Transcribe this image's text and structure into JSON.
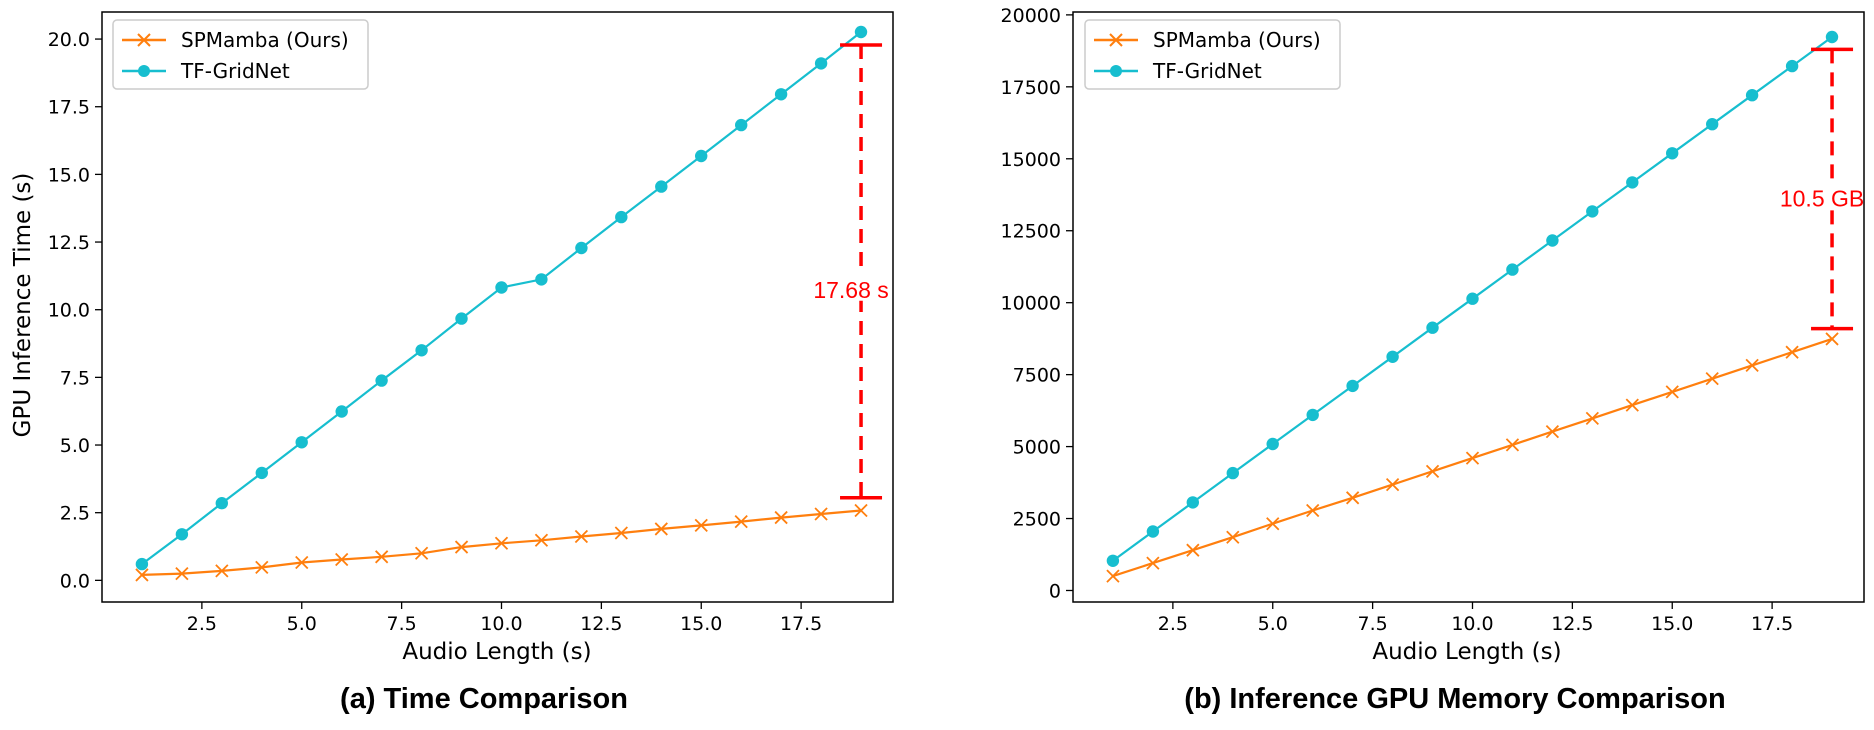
{
  "colors": {
    "spmamba": "#ff7f0e",
    "tfgridnet": "#17becf",
    "annotation": "#ff0000"
  },
  "chart_data": [
    {
      "type": "line",
      "caption": "(a) Time Comparison",
      "xlabel": "Audio Length (s)",
      "ylabel": "GPU Inference Time (s)",
      "xlim": [
        0.0,
        19.8
      ],
      "ylim": [
        -0.8,
        21.0
      ],
      "xticks": [
        2.5,
        5.0,
        7.5,
        10.0,
        12.5,
        15.0,
        17.5
      ],
      "xtick_labels": [
        "2.5",
        "5.0",
        "7.5",
        "10.0",
        "12.5",
        "15.0",
        "17.5"
      ],
      "yticks": [
        0.0,
        2.5,
        5.0,
        7.5,
        10.0,
        12.5,
        15.0,
        17.5,
        20.0
      ],
      "ytick_labels": [
        "0.0",
        "2.5",
        "5.0",
        "7.5",
        "10.0",
        "12.5",
        "15.0",
        "17.5",
        "20.0"
      ],
      "legend": "top-left",
      "grid": false,
      "x": [
        1,
        2,
        3,
        4,
        5,
        6,
        7,
        8,
        9,
        10,
        11,
        12,
        13,
        14,
        15,
        16,
        17,
        18,
        19
      ],
      "series": [
        {
          "name": "SPMamba (Ours)",
          "marker": "x",
          "color": "#ff7f0e",
          "values": [
            0.2,
            0.25,
            0.35,
            0.48,
            0.66,
            0.77,
            0.87,
            1.0,
            1.23,
            1.37,
            1.48,
            1.62,
            1.75,
            1.9,
            2.03,
            2.17,
            2.32,
            2.45,
            2.58
          ]
        },
        {
          "name": "TF-GridNet",
          "marker": "o",
          "color": "#17becf",
          "values": [
            0.6,
            1.7,
            2.85,
            3.97,
            5.1,
            6.24,
            7.38,
            8.5,
            9.67,
            10.82,
            11.12,
            12.28,
            13.42,
            14.55,
            15.68,
            16.82,
            17.96,
            19.1,
            20.26
          ]
        }
      ],
      "annotation": {
        "text": "17.68 s",
        "x": 19.0,
        "y_low": 3.05,
        "y_high": 19.78,
        "label_y": 10.7
      }
    },
    {
      "type": "line",
      "caption": "(b) Inference GPU Memory Comparison",
      "xlabel": "Audio Length (s)",
      "ylabel": "",
      "xlim": [
        0.0,
        19.8
      ],
      "ylim": [
        -400,
        20100
      ],
      "xticks": [
        2.5,
        5.0,
        7.5,
        10.0,
        12.5,
        15.0,
        17.5
      ],
      "xtick_labels": [
        "2.5",
        "5.0",
        "7.5",
        "10.0",
        "12.5",
        "15.0",
        "17.5"
      ],
      "yticks": [
        0,
        2500,
        5000,
        7500,
        10000,
        12500,
        15000,
        17500,
        20000
      ],
      "ytick_labels": [
        "0",
        "2500",
        "5000",
        "7500",
        "10000",
        "12500",
        "15000",
        "17500",
        "20000"
      ],
      "legend": "top-left",
      "grid": false,
      "x": [
        1,
        2,
        3,
        4,
        5,
        6,
        7,
        8,
        9,
        10,
        11,
        12,
        13,
        14,
        15,
        16,
        17,
        18,
        19
      ],
      "series": [
        {
          "name": "SPMamba (Ours)",
          "marker": "x",
          "color": "#ff7f0e",
          "values": [
            500,
            950,
            1400,
            1850,
            2320,
            2780,
            3220,
            3680,
            4140,
            4600,
            5060,
            5520,
            5980,
            6440,
            6900,
            7360,
            7820,
            8280,
            8740
          ]
        },
        {
          "name": "TF-GridNet",
          "marker": "o",
          "color": "#17becf",
          "values": [
            1030,
            2050,
            3060,
            4080,
            5090,
            6100,
            7110,
            8120,
            9130,
            10140,
            11150,
            12160,
            13170,
            14180,
            15190,
            16200,
            17210,
            18220,
            19230
          ]
        }
      ],
      "annotation": {
        "text": "10.5 GB",
        "x": 19.0,
        "y_low": 9100,
        "y_high": 18800,
        "label_y": 13580
      }
    }
  ]
}
